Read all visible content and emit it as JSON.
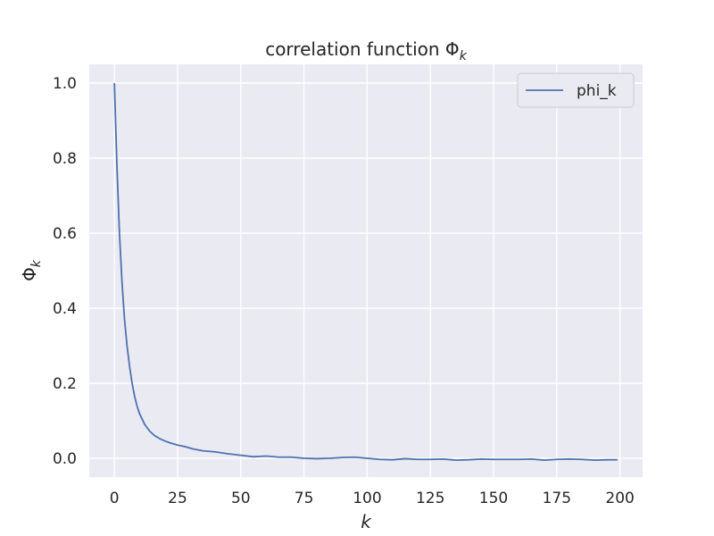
{
  "chart_data": {
    "type": "line",
    "title": "correlation function Φ",
    "title_subscript": "k",
    "xlabel": "k",
    "ylabel": "Φ",
    "ylabel_subscript": "k",
    "xlim": [
      -9.95,
      208.95
    ],
    "ylim": [
      -0.05,
      1.05
    ],
    "xticks": [
      0,
      25,
      50,
      75,
      100,
      125,
      150,
      175,
      200
    ],
    "xtick_labels": [
      "0",
      "25",
      "50",
      "75",
      "100",
      "125",
      "150",
      "175",
      "200"
    ],
    "yticks": [
      0.0,
      0.2,
      0.4,
      0.6,
      0.8,
      1.0
    ],
    "ytick_labels": [
      "0.0",
      "0.2",
      "0.4",
      "0.6",
      "0.8",
      "1.0"
    ],
    "grid": true,
    "legend_position": "top-right",
    "style": {
      "background": "#eaeaf2",
      "grid_color": "#ffffff",
      "line_color": "#4c72b0"
    },
    "series": [
      {
        "name": "phi_k",
        "x": [
          0,
          1,
          2,
          3,
          4,
          5,
          6,
          7,
          8,
          9,
          10,
          12,
          14,
          16,
          18,
          20,
          22,
          25,
          28,
          31,
          35,
          40,
          45,
          50,
          55,
          60,
          65,
          70,
          75,
          80,
          85,
          90,
          95,
          100,
          105,
          110,
          115,
          120,
          125,
          130,
          135,
          140,
          145,
          150,
          155,
          160,
          165,
          170,
          175,
          180,
          185,
          190,
          195,
          199
        ],
        "y": [
          1.0,
          0.78,
          0.6,
          0.47,
          0.37,
          0.3,
          0.245,
          0.2,
          0.165,
          0.138,
          0.118,
          0.09,
          0.072,
          0.06,
          0.052,
          0.046,
          0.041,
          0.035,
          0.031,
          0.025,
          0.02,
          0.017,
          0.012,
          0.008,
          0.004,
          0.006,
          0.003,
          0.003,
          0.0,
          -0.001,
          0.0,
          0.002,
          0.003,
          0.0,
          -0.003,
          -0.004,
          -0.001,
          -0.003,
          -0.003,
          -0.002,
          -0.005,
          -0.004,
          -0.002,
          -0.003,
          -0.003,
          -0.003,
          -0.002,
          -0.005,
          -0.003,
          -0.002,
          -0.003,
          -0.005,
          -0.004,
          -0.004
        ]
      }
    ]
  }
}
